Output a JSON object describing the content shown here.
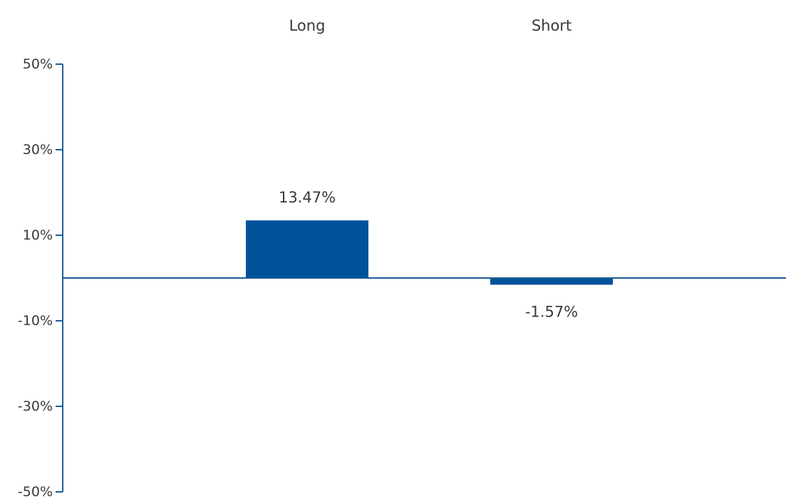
{
  "chart_data": {
    "type": "bar",
    "categories": [
      "Long",
      "Short"
    ],
    "values": [
      13.47,
      -1.57
    ],
    "value_labels": [
      "13.47%",
      "-1.57%"
    ],
    "title": "",
    "xlabel": "",
    "ylabel": "",
    "ylim": [
      -50,
      50
    ],
    "yticks": [
      50,
      30,
      10,
      -10,
      -30,
      -50
    ],
    "ytick_labels": [
      "50%",
      "30%",
      "10%",
      "-10%",
      "-30%",
      "-50%"
    ],
    "category_label_position": "top",
    "grid": false,
    "legend": "none",
    "colors": {
      "bar": "#00539b",
      "axis": "#1f5c94",
      "text": "#3a3a3a"
    }
  }
}
